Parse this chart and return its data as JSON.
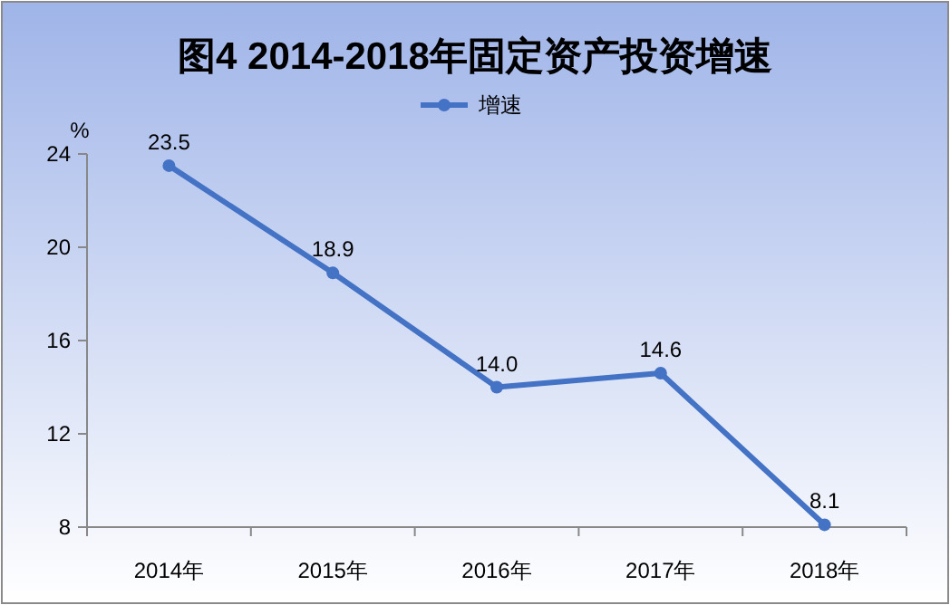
{
  "chart_data": {
    "type": "line",
    "title": "图4  2014-2018年固定资产投资增速",
    "ylabel": "%",
    "categories": [
      "2014年",
      "2015年",
      "2016年",
      "2017年",
      "2018年"
    ],
    "series": [
      {
        "name": "增速",
        "color": "#4472c4",
        "values": [
          23.5,
          18.9,
          14.0,
          14.6,
          8.1
        ],
        "value_labels": [
          "23.5",
          "18.9",
          "14.0",
          "14.6",
          "8.1"
        ]
      }
    ],
    "ylim": [
      8,
      24
    ],
    "yticks": [
      8,
      12,
      16,
      20,
      24
    ],
    "legend": "top",
    "marker": "circle",
    "line_style": "solid"
  }
}
